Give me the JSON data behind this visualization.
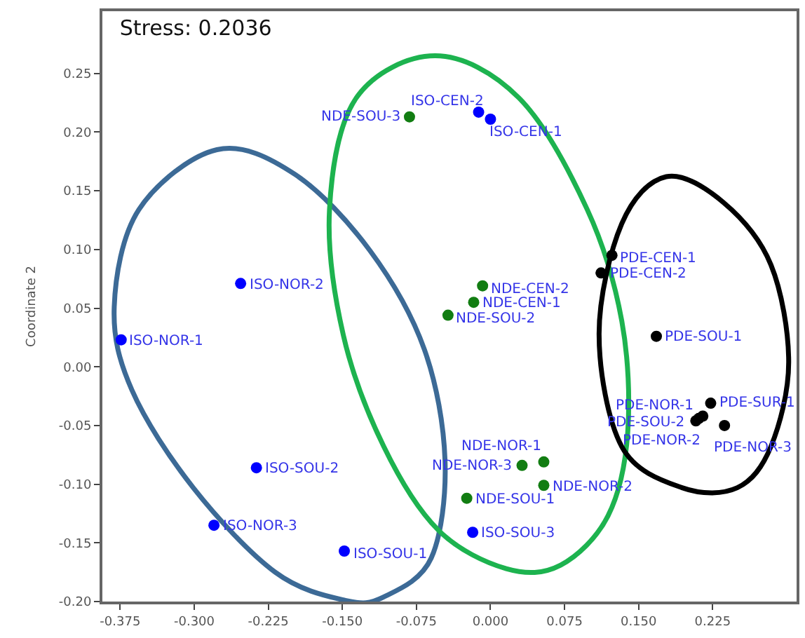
{
  "chart_data": {
    "type": "scatter",
    "title": "Stress: 0.2036",
    "ylabel": "Coordinate 2",
    "xlim": [
      -0.393,
      0.31
    ],
    "ylim": [
      -0.2,
      0.303
    ],
    "xticks": [
      {
        "value": -0.375,
        "label": "-0.375"
      },
      {
        "value": -0.3,
        "label": "-0.300"
      },
      {
        "value": -0.225,
        "label": "-0.225"
      },
      {
        "value": -0.15,
        "label": "-0.150"
      },
      {
        "value": -0.075,
        "label": "-0.075"
      },
      {
        "value": 0,
        "label": "0.000"
      },
      {
        "value": 0.075,
        "label": "0.075"
      },
      {
        "value": 0.15,
        "label": "0.150"
      },
      {
        "value": 0.225,
        "label": "0.225"
      }
    ],
    "yticks": [
      {
        "value": -0.2,
        "label": "-0.20"
      },
      {
        "value": -0.15,
        "label": "-0.15"
      },
      {
        "value": -0.1,
        "label": "-0.10"
      },
      {
        "value": -0.05,
        "label": "-0.05"
      },
      {
        "value": 0,
        "label": "0.00"
      },
      {
        "value": 0.05,
        "label": "0.05"
      },
      {
        "value": 0.1,
        "label": "0.10"
      },
      {
        "value": 0.15,
        "label": "0.15"
      },
      {
        "value": 0.2,
        "label": "0.20"
      },
      {
        "value": 0.25,
        "label": "0.25"
      }
    ],
    "grid": false,
    "marker": "circle",
    "series": [
      {
        "color": "#0000ff",
        "x": [
          -0.374,
          -0.253,
          -0.237,
          -0.28,
          -0.148,
          -0.018,
          -0.012,
          0.0
        ],
        "values": [
          0.023,
          0.071,
          -0.086,
          -0.135,
          -0.157,
          -0.141,
          0.217,
          0.211
        ]
      },
      {
        "color": "#127d12",
        "x": [
          -0.082,
          -0.008,
          -0.017,
          -0.043,
          0.054,
          0.032,
          0.054,
          -0.024
        ],
        "values": [
          0.213,
          0.069,
          0.055,
          0.044,
          -0.081,
          -0.084,
          -0.101,
          -0.112
        ]
      },
      {
        "color": "#000000",
        "x": [
          0.123,
          0.112,
          0.168,
          0.223,
          0.215,
          0.208,
          0.211,
          0.237
        ],
        "values": [
          0.095,
          0.08,
          0.026,
          -0.031,
          -0.042,
          -0.046,
          -0.044,
          -0.05
        ]
      }
    ],
    "annotations": [
      {
        "text": "ISO-NOR-1",
        "x": -0.374,
        "y": 0.023
      },
      {
        "text": "ISO-NOR-2",
        "x": -0.253,
        "y": 0.071
      },
      {
        "text": "ISO-SOU-2",
        "x": -0.237,
        "y": -0.086
      },
      {
        "text": "ISO-NOR-3",
        "x": -0.28,
        "y": -0.135
      },
      {
        "text": "ISO-SOU-1",
        "x": -0.148,
        "y": -0.157
      },
      {
        "text": "ISO-SOU-3",
        "x": -0.018,
        "y": -0.141
      },
      {
        "text": "ISO-CEN-2",
        "x": -0.012,
        "y": 0.217
      },
      {
        "text": "ISO-CEN-1",
        "x": 0.0,
        "y": 0.211
      },
      {
        "text": "NDE-SOU-3",
        "x": -0.082,
        "y": 0.213
      },
      {
        "text": "NDE-CEN-2",
        "x": -0.008,
        "y": 0.069
      },
      {
        "text": "NDE-CEN-1",
        "x": -0.017,
        "y": 0.055
      },
      {
        "text": "NDE-SOU-2",
        "x": -0.043,
        "y": 0.044
      },
      {
        "text": "NDE-NOR-1",
        "x": 0.054,
        "y": -0.081
      },
      {
        "text": "NDE-NOR-3",
        "x": 0.032,
        "y": -0.084
      },
      {
        "text": "NDE-NOR-2",
        "x": 0.054,
        "y": -0.101
      },
      {
        "text": "NDE-SOU-1",
        "x": -0.024,
        "y": -0.112
      },
      {
        "text": "PDE-CEN-1",
        "x": 0.123,
        "y": 0.095
      },
      {
        "text": "PDE-CEN-2",
        "x": 0.112,
        "y": 0.08
      },
      {
        "text": "PDE-SOU-1",
        "x": 0.168,
        "y": 0.026
      },
      {
        "text": "PDE-SUR-1",
        "x": 0.223,
        "y": -0.031
      },
      {
        "text": "PDE-NOR-1",
        "x": 0.215,
        "y": -0.042
      },
      {
        "text": "PDE-SOU-2",
        "x": 0.208,
        "y": -0.046
      },
      {
        "text": "PDE-NOR-2",
        "x": 0.211,
        "y": -0.044
      },
      {
        "text": "PDE-NOR-3",
        "x": 0.237,
        "y": -0.05
      }
    ]
  }
}
